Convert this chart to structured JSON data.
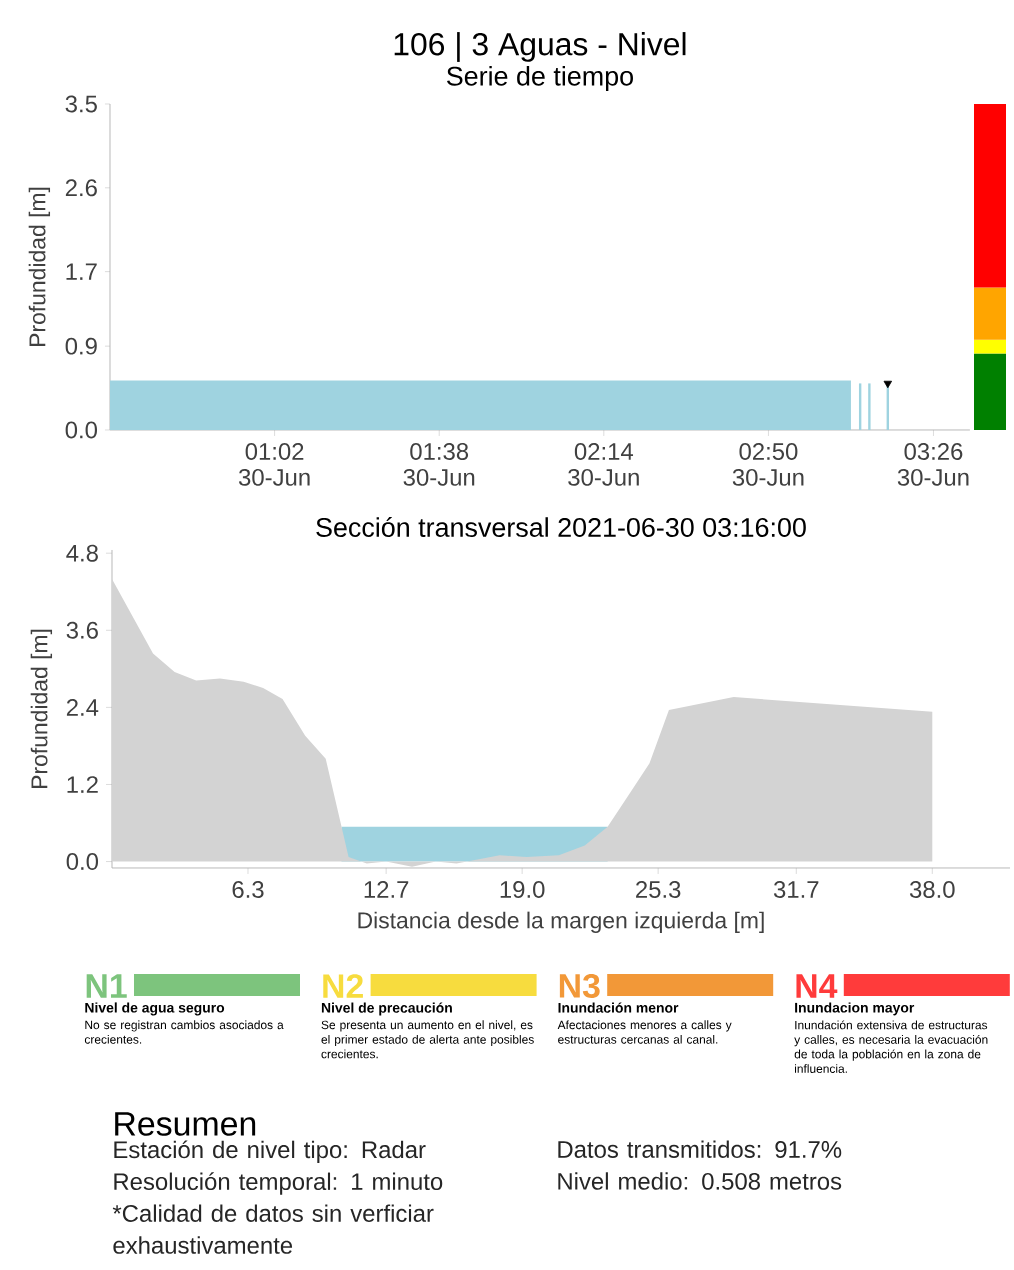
{
  "chart_data": [
    {
      "type": "area",
      "title": "106 | 3 Aguas - Nivel",
      "subtitle": "Serie de tiempo",
      "ylabel": "Profundidad [m]",
      "xlim": [
        "2021-06-30T00:26",
        "2021-06-30T03:34"
      ],
      "ylim": [
        0,
        3.5
      ],
      "xticks": [
        {
          "value": "2021-06-30T01:02",
          "label": "01:02 30-Jun"
        },
        {
          "value": "2021-06-30T01:38",
          "label": "01:38 30-Jun"
        },
        {
          "value": "2021-06-30T02:14",
          "label": "02:14 30-Jun"
        },
        {
          "value": "2021-06-30T02:50",
          "label": "02:50 30-Jun"
        },
        {
          "value": "2021-06-30T03:26",
          "label": "03:26 30-Jun"
        }
      ],
      "yticks": [
        {
          "value": 0,
          "label": "0.0"
        },
        0.9,
        1.7,
        2.6,
        3.5
      ],
      "series": [
        {
          "type": "area",
          "color": "#9fd3e0",
          "x": [
            "2021-06-30T00:26",
            "2021-06-30T00:45",
            "2021-06-30T01:00",
            "2021-06-30T01:15",
            "2021-06-30T01:30",
            "2021-06-30T01:45",
            "2021-06-30T02:00",
            "2021-06-30T02:15",
            "2021-06-30T02:30",
            "2021-06-30T02:45",
            "2021-06-30T03:00",
            "2021-06-30T03:08"
          ],
          "values": [
            0.53,
            0.53,
            0.53,
            0.53,
            0.53,
            0.53,
            0.53,
            0.53,
            0.53,
            0.53,
            0.53,
            0.53
          ]
        },
        {
          "type": "bar",
          "color": "#9fd3e0",
          "x": [
            "2021-06-30T03:10",
            "2021-06-30T03:12",
            "2021-06-30T03:16"
          ],
          "values": [
            0.5,
            0.5,
            0.5
          ]
        },
        {
          "type": "scatter",
          "marker": "triangle",
          "color": "#000000",
          "x": [
            "2021-06-30T03:16"
          ],
          "values": [
            0.5
          ]
        }
      ]
    },
    {
      "type": "bar",
      "stacked": true,
      "categories": [
        null
      ],
      "ylim": [
        0,
        3.5
      ],
      "tick_labels": false,
      "series": [
        {
          "color": "#008000",
          "values": [
            0.82
          ]
        },
        {
          "color": "#ffff00",
          "values": [
            0.15
          ]
        },
        {
          "color": "#ffa500",
          "values": [
            0.56
          ]
        },
        {
          "color": "#ff0000",
          "values": [
            1.97
          ]
        }
      ]
    },
    {
      "type": "area",
      "title": "Sección transversal 2021-06-30 03:16:00",
      "xlabel": "Distancia desde la margen izquierda [m]",
      "ylabel": "Profundidad [m]",
      "xlim": [
        0,
        41.6
      ],
      "ylim": [
        -0.1,
        4.85
      ],
      "xticks": [
        6.3,
        12.7,
        {
          "value": 19,
          "label": "19.0"
        },
        25.3,
        31.7,
        {
          "value": 38,
          "label": "38.0"
        }
      ],
      "yticks": [
        {
          "value": 0,
          "label": "0.0"
        },
        1.2,
        2.4,
        3.6,
        4.8
      ],
      "series": [
        {
          "type": "area",
          "color": "#9fd3e0",
          "x": [
            10.63,
            22.96
          ],
          "values": [
            0.54,
            0.54
          ]
        },
        {
          "type": "area",
          "color": "#d3d3d3",
          "x": [
            0,
            1.9,
            2.9,
            3.9,
            5.0,
            6.1,
            7.0,
            7.9,
            8.95,
            9.9,
            10.96,
            11.8,
            12.7,
            13.9,
            15.0,
            15.96,
            17.96,
            19.2,
            20.7,
            21.9,
            22.96,
            23.98,
            24.9,
            25.8,
            28.8,
            38.0
          ],
          "values": [
            4.4,
            3.24,
            2.95,
            2.82,
            2.85,
            2.8,
            2.7,
            2.53,
            1.96,
            1.6,
            0.07,
            -0.03,
            0.0,
            -0.08,
            0.0,
            -0.03,
            0.1,
            0.07,
            0.1,
            0.25,
            0.54,
            1.06,
            1.53,
            2.36,
            2.56,
            2.33
          ]
        }
      ]
    },
    {
      "type": "other",
      "categories": [
        "N1",
        "N2",
        "N3",
        "N4"
      ],
      "colors": [
        "#7dc47d",
        "#f7dc3e",
        "#f29838",
        "#ff3b3b"
      ],
      "annotations": [
        "Nivel de agua seguro",
        "No se registran cambios asociados a crecientes.",
        "Nivel de precaución",
        "Se presenta un aumento en el nivel, es el primer estado de alerta ante posibles crecientes.",
        "Inundación menor",
        "Afectaciones menores a calles y estructuras cercanas al canal.",
        "Inundacion mayor",
        "Inundación extensiva de estructuras y calles, es necesaria la evacuación de toda la población en la zona de influencia."
      ]
    },
    {
      "type": "other",
      "title": "Resumen",
      "annotations": [
        "Estación de nivel tipo: Radar",
        "Resolución temporal: 1 minuto",
        "*Calidad de datos sin verficiar exhaustivamente",
        "Datos transmitidos: 91.7%",
        "Nivel medio: 0.508 metros"
      ]
    }
  ]
}
